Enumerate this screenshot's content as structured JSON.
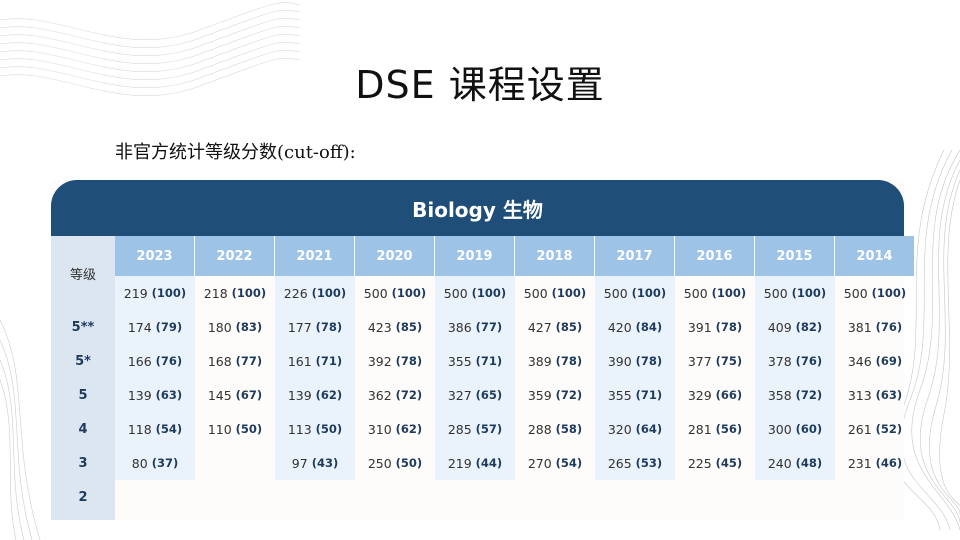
{
  "slide": {
    "title": "DSE 课程设置",
    "subtitle": "非官方统计等级分数(cut-off):"
  },
  "table": {
    "title": "Biology 生物",
    "grade_header": "等级",
    "years": [
      "2023",
      "2022",
      "2021",
      "2020",
      "2019",
      "2018",
      "2017",
      "2016",
      "2015",
      "2014"
    ],
    "grades": [
      "",
      "5**",
      "5*",
      "5",
      "4",
      "3",
      "2"
    ],
    "rows": [
      [
        [
          "219",
          "(100)"
        ],
        [
          "218",
          "(100)"
        ],
        [
          "226",
          "(100)"
        ],
        [
          "500",
          "(100)"
        ],
        [
          "500",
          "(100)"
        ],
        [
          "500",
          "(100)"
        ],
        [
          "500",
          "(100)"
        ],
        [
          "500",
          "(100)"
        ],
        [
          "500",
          "(100)"
        ],
        [
          "500",
          "(100)"
        ]
      ],
      [
        [
          "174",
          "(79)"
        ],
        [
          "180",
          "(83)"
        ],
        [
          "177",
          "(78)"
        ],
        [
          "423",
          "(85)"
        ],
        [
          "386",
          "(77)"
        ],
        [
          "427",
          "(85)"
        ],
        [
          "420",
          "(84)"
        ],
        [
          "391",
          "(78)"
        ],
        [
          "409",
          "(82)"
        ],
        [
          "381",
          "(76)"
        ]
      ],
      [
        [
          "166",
          "(76)"
        ],
        [
          "168",
          "(77)"
        ],
        [
          "161",
          "(71)"
        ],
        [
          "392",
          "(78)"
        ],
        [
          "355",
          "(71)"
        ],
        [
          "389",
          "(78)"
        ],
        [
          "390",
          "(78)"
        ],
        [
          "377",
          "(75)"
        ],
        [
          "378",
          "(76)"
        ],
        [
          "346",
          "(69)"
        ]
      ],
      [
        [
          "139",
          "(63)"
        ],
        [
          "145",
          "(67)"
        ],
        [
          "139",
          "(62)"
        ],
        [
          "362",
          "(72)"
        ],
        [
          "327",
          "(65)"
        ],
        [
          "359",
          "(72)"
        ],
        [
          "355",
          "(71)"
        ],
        [
          "329",
          "(66)"
        ],
        [
          "358",
          "(72)"
        ],
        [
          "313",
          "(63)"
        ]
      ],
      [
        [
          "118",
          "(54)"
        ],
        [
          "110",
          "(50)"
        ],
        [
          "113",
          "(50)"
        ],
        [
          "310",
          "(62)"
        ],
        [
          "285",
          "(57)"
        ],
        [
          "288",
          "(58)"
        ],
        [
          "320",
          "(64)"
        ],
        [
          "281",
          "(56)"
        ],
        [
          "300",
          "(60)"
        ],
        [
          "261",
          "(52)"
        ]
      ],
      [
        [
          "80",
          "(37)"
        ],
        [
          "",
          ""
        ],
        [
          "97",
          "(43)"
        ],
        [
          "250",
          "(50)"
        ],
        [
          "219",
          "(44)"
        ],
        [
          "270",
          "(54)"
        ],
        [
          "265",
          "(53)"
        ],
        [
          "225",
          "(45)"
        ],
        [
          "240",
          "(48)"
        ],
        [
          "231",
          "(46)"
        ]
      ],
      [
        [
          "",
          ""
        ],
        [
          "",
          ""
        ],
        [
          "",
          ""
        ],
        [
          "",
          ""
        ],
        [
          "",
          ""
        ],
        [
          "",
          ""
        ],
        [
          "",
          ""
        ],
        [
          "",
          ""
        ],
        [
          "",
          ""
        ],
        [
          "",
          ""
        ]
      ]
    ]
  }
}
